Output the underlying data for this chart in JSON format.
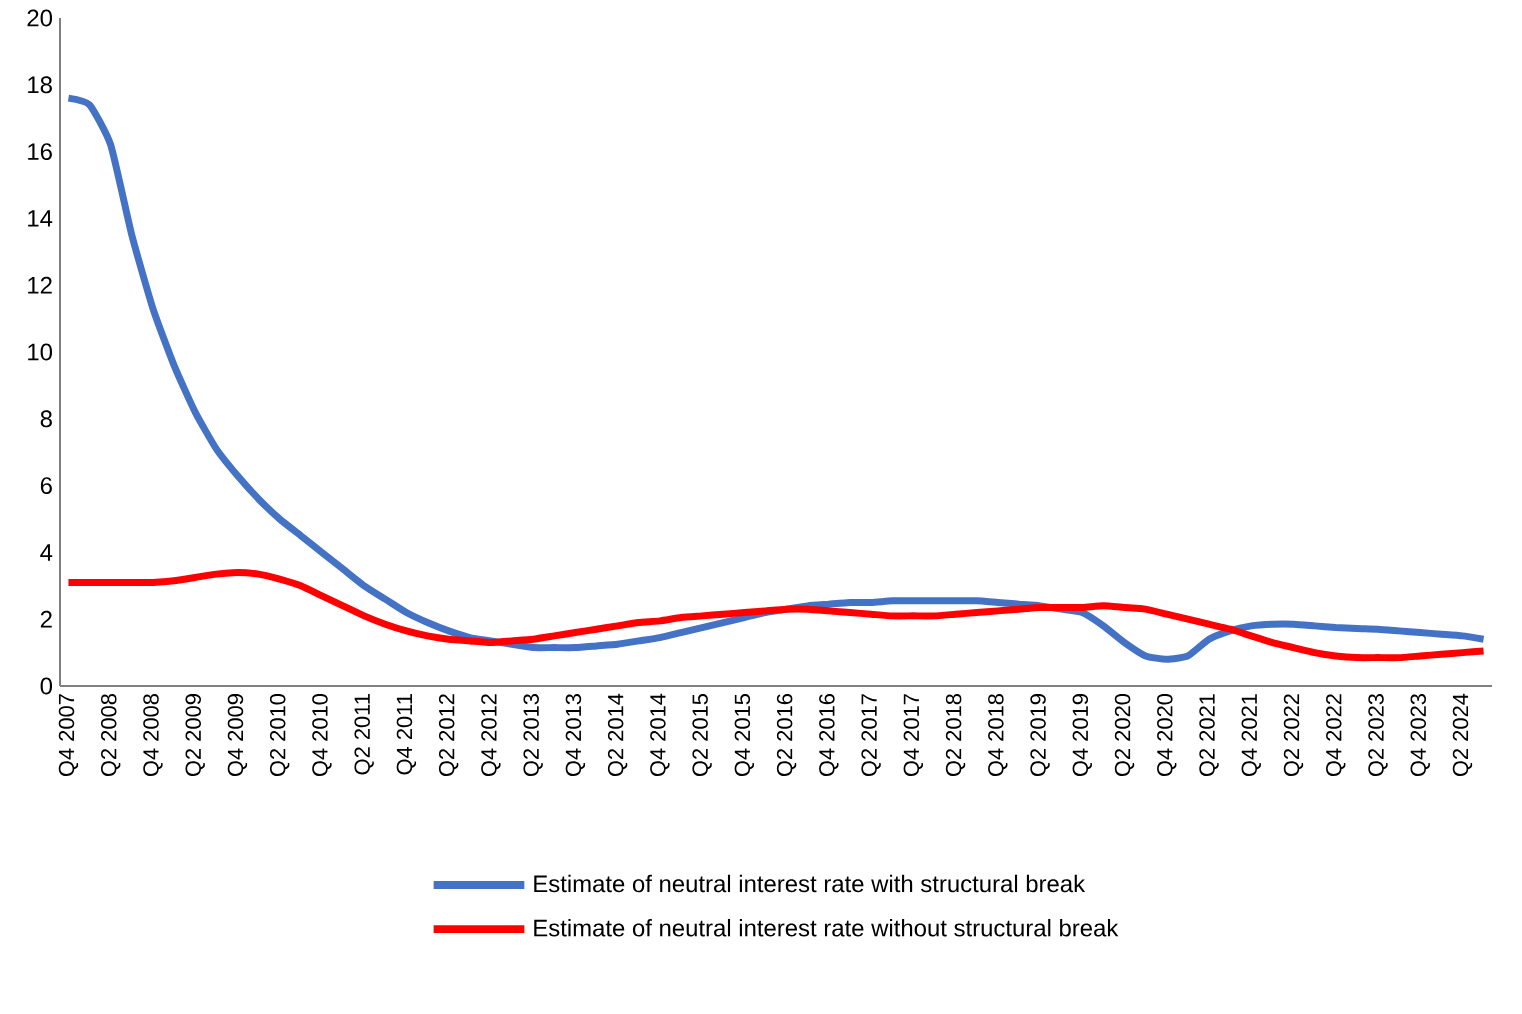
{
  "chart_data": {
    "type": "line",
    "categories": [
      "Q4 2007",
      null,
      "Q2 2008",
      null,
      "Q4 2008",
      null,
      "Q2 2009",
      null,
      "Q4 2009",
      null,
      "Q2 2010",
      null,
      "Q4 2010",
      null,
      "Q2 2011",
      null,
      "Q4 2011",
      null,
      "Q2 2012",
      null,
      "Q4 2012",
      null,
      "Q2 2013",
      null,
      "Q4 2013",
      null,
      "Q2 2014",
      null,
      "Q4 2014",
      null,
      "Q2 2015",
      null,
      "Q4 2015",
      null,
      "Q2 2016",
      null,
      "Q4 2016",
      null,
      "Q2 2017",
      null,
      "Q4 2017",
      null,
      "Q2 2018",
      null,
      "Q4 2018",
      null,
      "Q2 2019",
      null,
      "Q4 2019",
      null,
      "Q2 2020",
      null,
      "Q4 2020",
      null,
      "Q2 2021",
      null,
      "Q4 2021",
      null,
      "Q2 2022",
      null,
      "Q4 2022",
      null,
      "Q2 2023",
      null,
      "Q4 2023",
      null,
      "Q2 2024",
      null
    ],
    "series": [
      {
        "name": "Estimate of neutral interest rate with structural break",
        "color": "#4472c4",
        "values": [
          17.6,
          17.4,
          16.2,
          13.5,
          11.3,
          9.6,
          8.2,
          7.1,
          6.3,
          5.6,
          5.0,
          4.5,
          4.0,
          3.5,
          3.0,
          2.6,
          2.2,
          1.9,
          1.65,
          1.45,
          1.35,
          1.25,
          1.15,
          1.15,
          1.15,
          1.2,
          1.25,
          1.35,
          1.45,
          1.6,
          1.75,
          1.9,
          2.05,
          2.2,
          2.3,
          2.4,
          2.45,
          2.5,
          2.5,
          2.55,
          2.55,
          2.55,
          2.55,
          2.55,
          2.5,
          2.45,
          2.4,
          2.3,
          2.2,
          1.8,
          1.3,
          0.9,
          0.8,
          0.9,
          1.4,
          1.65,
          1.8,
          1.85,
          1.85,
          1.8,
          1.75,
          1.72,
          1.7,
          1.65,
          1.6,
          1.55,
          1.5,
          1.4
        ]
      },
      {
        "name": "Estimate of neutral interest rate without structural break",
        "color": "#ff0000",
        "values": [
          3.1,
          3.1,
          3.1,
          3.1,
          3.1,
          3.15,
          3.25,
          3.35,
          3.4,
          3.35,
          3.2,
          3.0,
          2.7,
          2.4,
          2.1,
          1.85,
          1.65,
          1.5,
          1.4,
          1.35,
          1.3,
          1.35,
          1.4,
          1.5,
          1.6,
          1.7,
          1.8,
          1.9,
          1.95,
          2.05,
          2.1,
          2.15,
          2.2,
          2.25,
          2.3,
          2.3,
          2.25,
          2.2,
          2.15,
          2.1,
          2.1,
          2.1,
          2.15,
          2.2,
          2.25,
          2.3,
          2.35,
          2.35,
          2.35,
          2.4,
          2.35,
          2.3,
          2.15,
          2.0,
          1.85,
          1.7,
          1.5,
          1.3,
          1.15,
          1.0,
          0.9,
          0.85,
          0.85,
          0.85,
          0.9,
          0.95,
          1.0,
          1.05
        ]
      }
    ],
    "ylim": [
      0,
      20
    ],
    "yticks": [
      0,
      2,
      4,
      6,
      8,
      10,
      12,
      14,
      16,
      18,
      20
    ],
    "grid": false,
    "legend": "bottom",
    "marker": "none",
    "line_style": "solid"
  }
}
